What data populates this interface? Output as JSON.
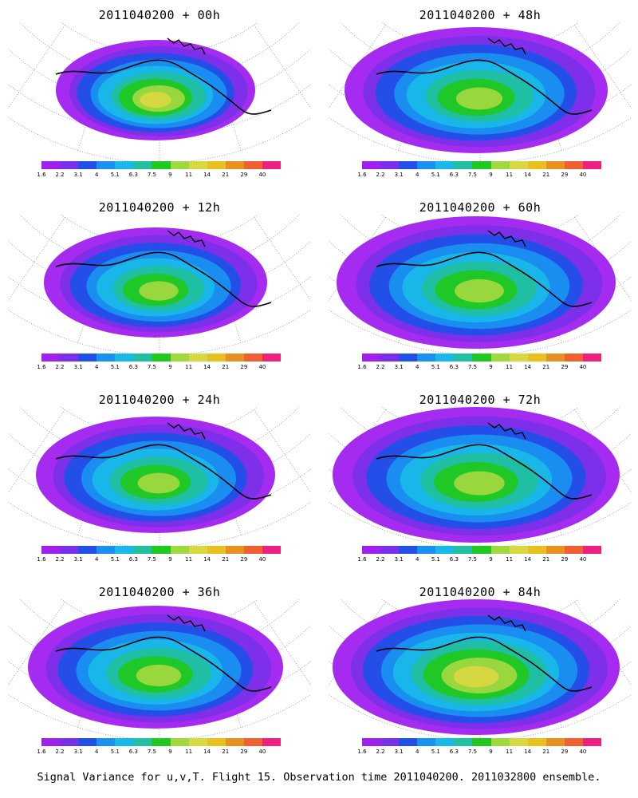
{
  "panels": [
    {
      "title": "2011040200 + 00h",
      "spread": 0.45,
      "peak": 11
    },
    {
      "title": "2011040200 + 48h",
      "spread": 0.85,
      "peak": 9
    },
    {
      "title": "2011040200 + 12h",
      "spread": 0.6,
      "peak": 9
    },
    {
      "title": "2011040200 + 60h",
      "spread": 0.95,
      "peak": 9
    },
    {
      "title": "2011040200 + 24h",
      "spread": 0.7,
      "peak": 9
    },
    {
      "title": "2011040200 + 72h",
      "spread": 1.0,
      "peak": 10
    },
    {
      "title": "2011040200 + 36h",
      "spread": 0.8,
      "peak": 9
    },
    {
      "title": "2011040200 + 84h",
      "spread": 1.0,
      "peak": 11
    }
  ],
  "colorbar": {
    "colors": [
      "#a020f0",
      "#7a2fe8",
      "#2050e8",
      "#1a90f0",
      "#18b8e8",
      "#20c0a0",
      "#20c820",
      "#a0d840",
      "#d8d840",
      "#e8c020",
      "#e89020",
      "#f06030",
      "#f02080"
    ],
    "labels": [
      "1.6",
      "2.2",
      "3.1",
      "4",
      "5.1",
      "6.3",
      "7.5",
      "9",
      "11",
      "14",
      "21",
      "29",
      "40"
    ]
  },
  "caption": "Signal Variance for u,v,T. Flight 15. Observation time 2011040200. 2011032800 ensemble."
}
